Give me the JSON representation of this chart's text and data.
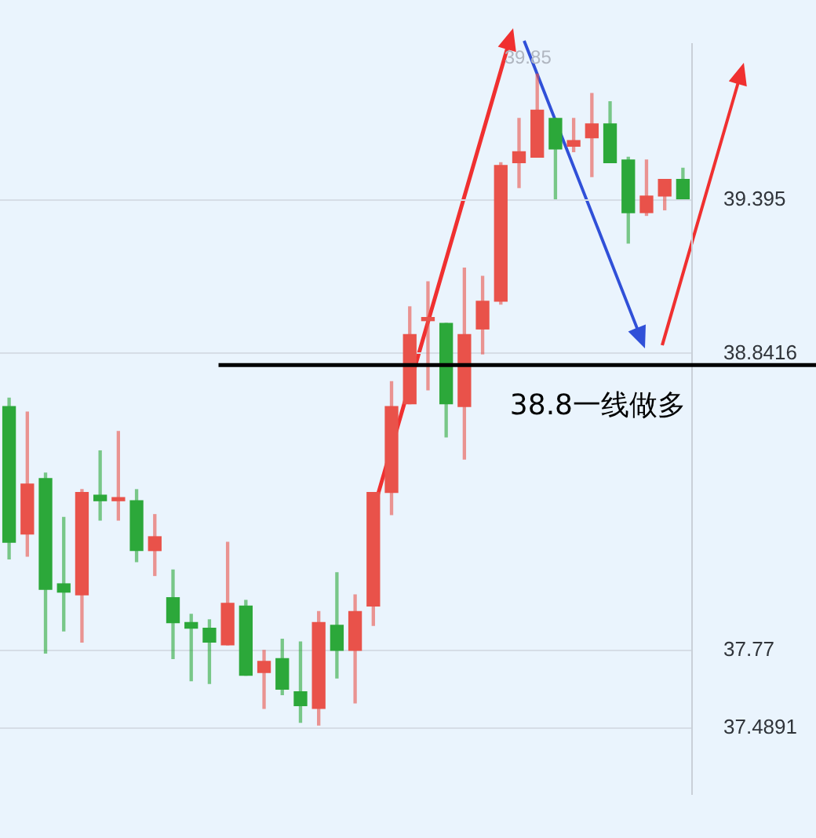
{
  "chart_data": {
    "type": "candlestick",
    "categories": [
      null,
      null,
      null,
      null,
      null,
      null,
      null,
      null,
      null,
      null,
      null,
      null,
      null,
      null,
      null,
      null,
      null,
      null,
      null,
      null,
      null,
      null,
      null,
      null,
      null,
      null,
      null,
      null,
      null,
      null,
      null,
      null,
      null,
      null,
      null,
      null,
      null,
      null
    ],
    "ohlc": [
      [
        38.65,
        38.68,
        38.1,
        38.16
      ],
      [
        38.19,
        38.63,
        38.11,
        38.37
      ],
      [
        38.39,
        38.41,
        37.76,
        37.99
      ],
      [
        38.01,
        38.25,
        37.84,
        37.98
      ],
      [
        37.97,
        38.35,
        37.8,
        38.34
      ],
      [
        38.33,
        38.49,
        38.24,
        38.31
      ],
      [
        38.31,
        38.56,
        38.24,
        38.32
      ],
      [
        38.31,
        38.35,
        38.09,
        38.13
      ],
      [
        38.13,
        38.26,
        38.04,
        38.18
      ],
      [
        37.96,
        38.06,
        37.74,
        37.87
      ],
      [
        37.87,
        37.9,
        37.66,
        37.85
      ],
      [
        37.85,
        37.88,
        37.65,
        37.8
      ],
      [
        37.79,
        38.16,
        37.79,
        37.94
      ],
      [
        37.93,
        37.95,
        37.68,
        37.68
      ],
      [
        37.69,
        37.77,
        37.56,
        37.73
      ],
      [
        37.74,
        37.81,
        37.61,
        37.63
      ],
      [
        37.62,
        37.8,
        37.51,
        37.57
      ],
      [
        37.56,
        37.91,
        37.5,
        37.87
      ],
      [
        37.86,
        38.05,
        37.67,
        37.77
      ],
      [
        37.77,
        37.97,
        37.58,
        37.91
      ],
      [
        37.93,
        38.34,
        37.86,
        38.34
      ],
      [
        38.34,
        38.74,
        38.26,
        38.65
      ],
      [
        38.66,
        39.01,
        38.66,
        38.91
      ],
      [
        38.96,
        39.1,
        38.71,
        38.97
      ],
      [
        38.95,
        38.95,
        38.54,
        38.66
      ],
      [
        38.65,
        39.15,
        38.46,
        38.91
      ],
      [
        38.93,
        39.12,
        38.84,
        39.03
      ],
      [
        39.03,
        39.53,
        39.02,
        39.52
      ],
      [
        39.53,
        39.69,
        39.44,
        39.57
      ],
      [
        39.55,
        39.85,
        39.55,
        39.72
      ],
      [
        39.69,
        39.69,
        39.4,
        39.58
      ],
      [
        39.59,
        39.69,
        39.57,
        39.61
      ],
      [
        39.62,
        39.78,
        39.48,
        39.67
      ],
      [
        39.67,
        39.75,
        39.53,
        39.53
      ],
      [
        39.54,
        39.55,
        39.24,
        39.35
      ],
      [
        39.35,
        39.54,
        39.34,
        39.41
      ],
      [
        39.41,
        39.47,
        39.36,
        39.47
      ],
      [
        39.47,
        39.51,
        39.4,
        39.4
      ]
    ],
    "colors": [
      "#2ca83a",
      "#e9524a",
      "#2ca83a",
      "#2ca83a",
      "#e9524a",
      "#2ca83a",
      "#e9524a",
      "#2ca83a",
      "#e9524a",
      "#2ca83a",
      "#2ca83a",
      "#2ca83a",
      "#e9524a",
      "#2ca83a",
      "#e9524a",
      "#2ca83a",
      "#2ca83a",
      "#e9524a",
      "#2ca83a",
      "#e9524a",
      "#e9524a",
      "#e9524a",
      "#e9524a",
      "#e9524a",
      "#2ca83a",
      "#e9524a",
      "#e9524a",
      "#e9524a",
      "#e9524a",
      "#e9524a",
      "#2ca83a",
      "#e9524a",
      "#e9524a",
      "#2ca83a",
      "#2ca83a",
      "#e9524a",
      "#e9524a",
      "#2ca83a"
    ],
    "ylim": [
      37.25,
      39.96
    ],
    "yticks": [
      39.395,
      38.8416,
      37.77,
      37.4891
    ],
    "grid": "y",
    "legend": false,
    "tick_labels": "y",
    "annotations": [
      {
        "text": "39.85",
        "y": 39.85
      }
    ],
    "ref_lines": [
      {
        "axis": "y",
        "value": 38.8,
        "label": "38.8一线做多",
        "color": "#000000"
      }
    ]
  }
}
